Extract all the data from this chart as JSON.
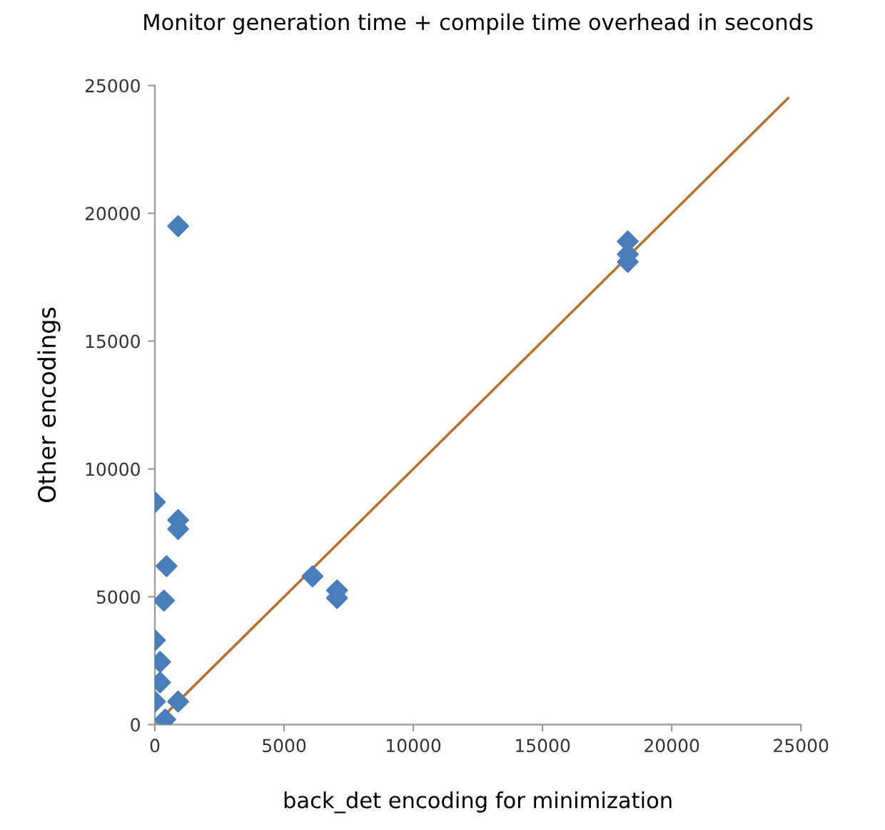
{
  "chart_data": {
    "type": "scatter",
    "title": "Monitor generation time + compile time overhead in seconds",
    "xlabel": "back_det encoding for minimization",
    "ylabel": "Other encodings",
    "xlim": [
      0,
      25000
    ],
    "ylim": [
      0,
      25000
    ],
    "xticks": [
      0,
      5000,
      10000,
      15000,
      20000,
      25000
    ],
    "yticks": [
      0,
      5000,
      10000,
      15000,
      20000,
      25000
    ],
    "grid": false,
    "legend": false,
    "series": [
      {
        "color": "#4a7ebb",
        "marker": "diamond",
        "x": [
          900,
          0,
          900,
          900,
          450,
          350,
          0,
          200,
          200,
          0,
          400,
          900,
          5900,
          6100,
          7050,
          7050,
          18300,
          18300,
          18300
        ],
        "values": [
          19500,
          8700,
          8000,
          7650,
          6200,
          4850,
          3300,
          2450,
          1650,
          900,
          200,
          900,
          null,
          5800,
          5250,
          4950,
          18900,
          18400,
          18100
        ]
      },
      {
        "type": "line",
        "color": "#b87333",
        "marker": "none",
        "x": [
          0,
          24500
        ],
        "values": [
          0,
          24500
        ]
      }
    ]
  }
}
